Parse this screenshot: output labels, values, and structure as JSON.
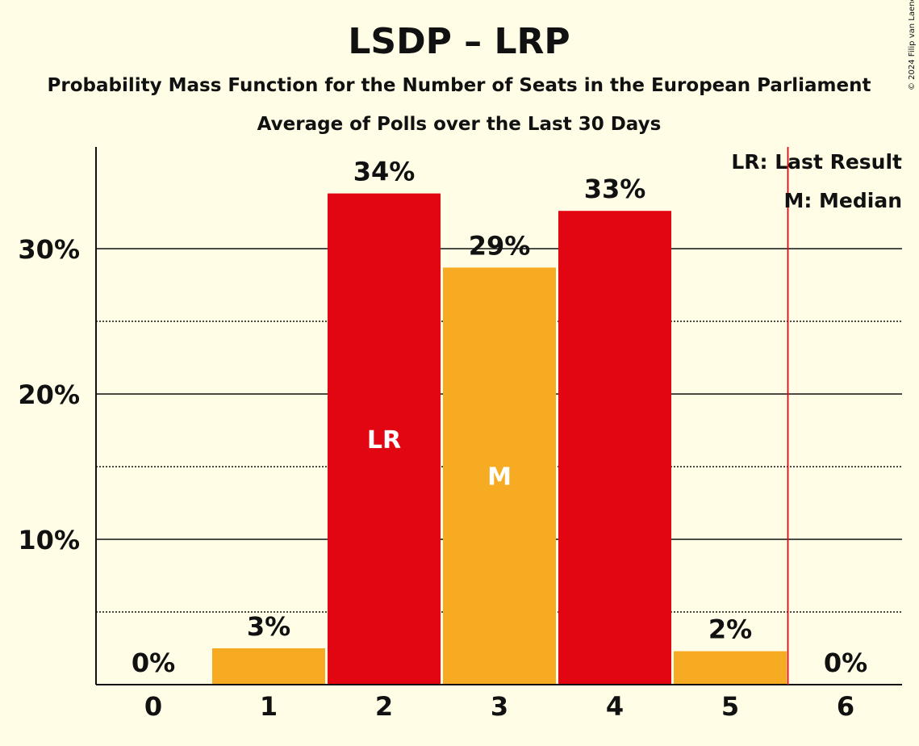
{
  "chart_data": {
    "type": "bar",
    "title": "LSDP – LRP",
    "subtitle": "Probability Mass Function for the Number of Seats in the European Parliament",
    "subtitle2": "Average of Polls over the Last 30 Days",
    "categories": [
      "0",
      "1",
      "2",
      "3",
      "4",
      "5",
      "6"
    ],
    "values": [
      0.0,
      2.5,
      33.8,
      28.7,
      32.6,
      2.3,
      0.0
    ],
    "data_labels": [
      "0%",
      "3%",
      "34%",
      "29%",
      "33%",
      "2%",
      "0%"
    ],
    "bar_colors": [
      "#f7ab22",
      "#f7ab22",
      "#e20612",
      "#f7ab22",
      "#e20612",
      "#f7ab22",
      "#f7ab22"
    ],
    "bar_markers": {
      "2": "LR",
      "3": "M"
    },
    "ylim": [
      0,
      37
    ],
    "yticks": [
      10,
      20,
      30
    ],
    "ytick_labels": [
      "10%",
      "20%",
      "30%"
    ],
    "minor_gridlines": [
      5,
      15,
      25
    ],
    "last_result_line_after": 5.5,
    "legend": [
      "LR: Last Result",
      "M: Median"
    ],
    "credit": "© 2024 Filip van Laenen",
    "colors": {
      "background": "#fffde6",
      "party_red": "#e20612",
      "party_orange": "#f7ab22",
      "last_result_line": "#e20612",
      "axis": "#111111"
    }
  }
}
